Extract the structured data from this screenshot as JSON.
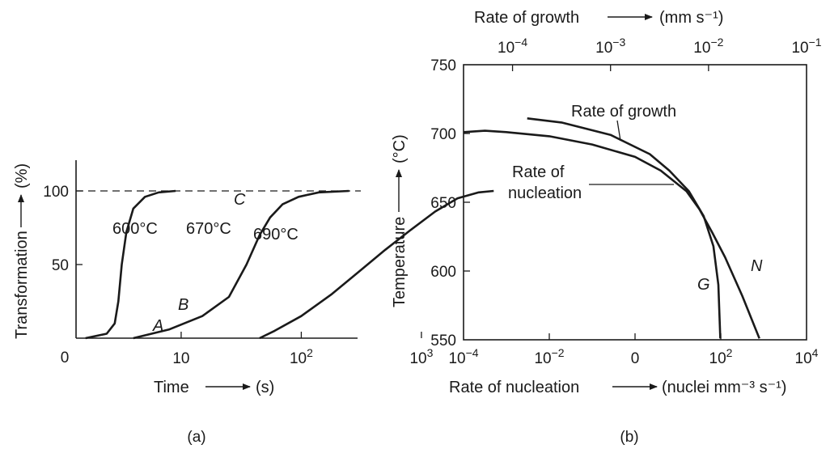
{
  "colors": {
    "ink": "#1a1a1a",
    "background": "#ffffff"
  },
  "chart_data": [
    {
      "type": "line",
      "panel_label": "(a)",
      "xlabel": "Time",
      "xunit": "(s)",
      "ylabel": "Transformation",
      "yunit": "(%)",
      "xscale": "log",
      "xlim": [
        1,
        100000
      ],
      "ylim": [
        0,
        120
      ],
      "origin_label": "0",
      "xticks": [
        {
          "value": 10,
          "label": "10"
        },
        {
          "value": 100,
          "label": "10",
          "sup": "2"
        },
        {
          "value": 1000,
          "label": "10",
          "sup": "3"
        }
      ],
      "yticks": [
        {
          "value": 50,
          "label": "50"
        },
        {
          "value": 100,
          "label": "100"
        }
      ],
      "reference_line": {
        "y": 100,
        "style": "dashed"
      },
      "series": [
        {
          "name": "600°C",
          "x": [
            1.6,
            2.4,
            2.8,
            3.0,
            3.2,
            3.5,
            4.0,
            5.0,
            6.5,
            9.0
          ],
          "y": [
            0,
            3,
            10,
            25,
            50,
            72,
            88,
            96,
            99,
            100
          ]
        },
        {
          "name": "670°C",
          "x": [
            4.0,
            8,
            15,
            25,
            35,
            45,
            55,
            70,
            95,
            140,
            250
          ],
          "y": [
            0,
            6,
            15,
            28,
            50,
            70,
            82,
            91,
            96,
            99,
            100
          ]
        },
        {
          "name": "690°C",
          "x": [
            45,
            60,
            100,
            180,
            300,
            500,
            800,
            1300,
            2000,
            3000,
            4000
          ],
          "y": [
            0,
            5,
            15,
            30,
            45,
            60,
            73,
            86,
            95,
            99,
            100
          ]
        }
      ],
      "annotations": [
        {
          "text": "A",
          "italic": true
        },
        {
          "text": "B",
          "italic": true
        },
        {
          "text": "C",
          "italic": true
        }
      ]
    },
    {
      "type": "line",
      "panel_label": "(b)",
      "xlabel": "Rate of nucleation",
      "xunit": "(nuclei mm⁻³ s⁻¹)",
      "x2label": "Rate of growth",
      "x2unit": "(mm s⁻¹)",
      "ylabel": "Temperature",
      "yunit": "(°C)",
      "xscale": "log",
      "xlim": [
        -4,
        4
      ],
      "x2lim": [
        -4.5,
        -1
      ],
      "ylim": [
        550,
        750
      ],
      "xticks": [
        {
          "value": -4,
          "label": "10",
          "sup": "−4"
        },
        {
          "value": -2,
          "label": "10",
          "sup": "−2"
        },
        {
          "value": 0,
          "label": "0"
        },
        {
          "value": 2,
          "label": "10",
          "sup": "2"
        },
        {
          "value": 4,
          "label": "10",
          "sup": "4"
        }
      ],
      "x2ticks": [
        {
          "value": -4,
          "label": "10",
          "sup": "−4"
        },
        {
          "value": -3,
          "label": "10",
          "sup": "−3"
        },
        {
          "value": -2,
          "label": "10",
          "sup": "−2"
        },
        {
          "value": -1,
          "label": "10",
          "sup": "−1"
        }
      ],
      "yticks": [
        {
          "value": 550,
          "label": "550"
        },
        {
          "value": 600,
          "label": "600"
        },
        {
          "value": 650,
          "label": "650"
        },
        {
          "value": 700,
          "label": "700"
        },
        {
          "value": 750,
          "label": "750"
        }
      ],
      "series": [
        {
          "name": "Rate of nucleation",
          "axis": "bottom",
          "x": [
            -4,
            -3.5,
            -3,
            -2,
            -1,
            0,
            0.6,
            1.2,
            1.5,
            1.8,
            2.1,
            2.5,
            2.9
          ],
          "y": [
            701,
            702,
            701,
            698,
            692,
            683,
            673,
            658,
            645,
            628,
            610,
            582,
            551
          ]
        },
        {
          "name": "Rate of growth",
          "axis": "top",
          "x": [
            -3.85,
            -3.5,
            -3.0,
            -2.6,
            -2.4,
            -2.2,
            -2.05,
            -1.95,
            -1.9,
            -1.88
          ],
          "y": [
            711,
            708,
            699,
            685,
            673,
            658,
            640,
            618,
            590,
            551
          ]
        }
      ],
      "annotations": [
        {
          "text": "Rate of growth"
        },
        {
          "text": "Rate of"
        },
        {
          "text": "nucleation"
        },
        {
          "text": "G",
          "italic": true
        },
        {
          "text": "N",
          "italic": true
        }
      ]
    }
  ]
}
